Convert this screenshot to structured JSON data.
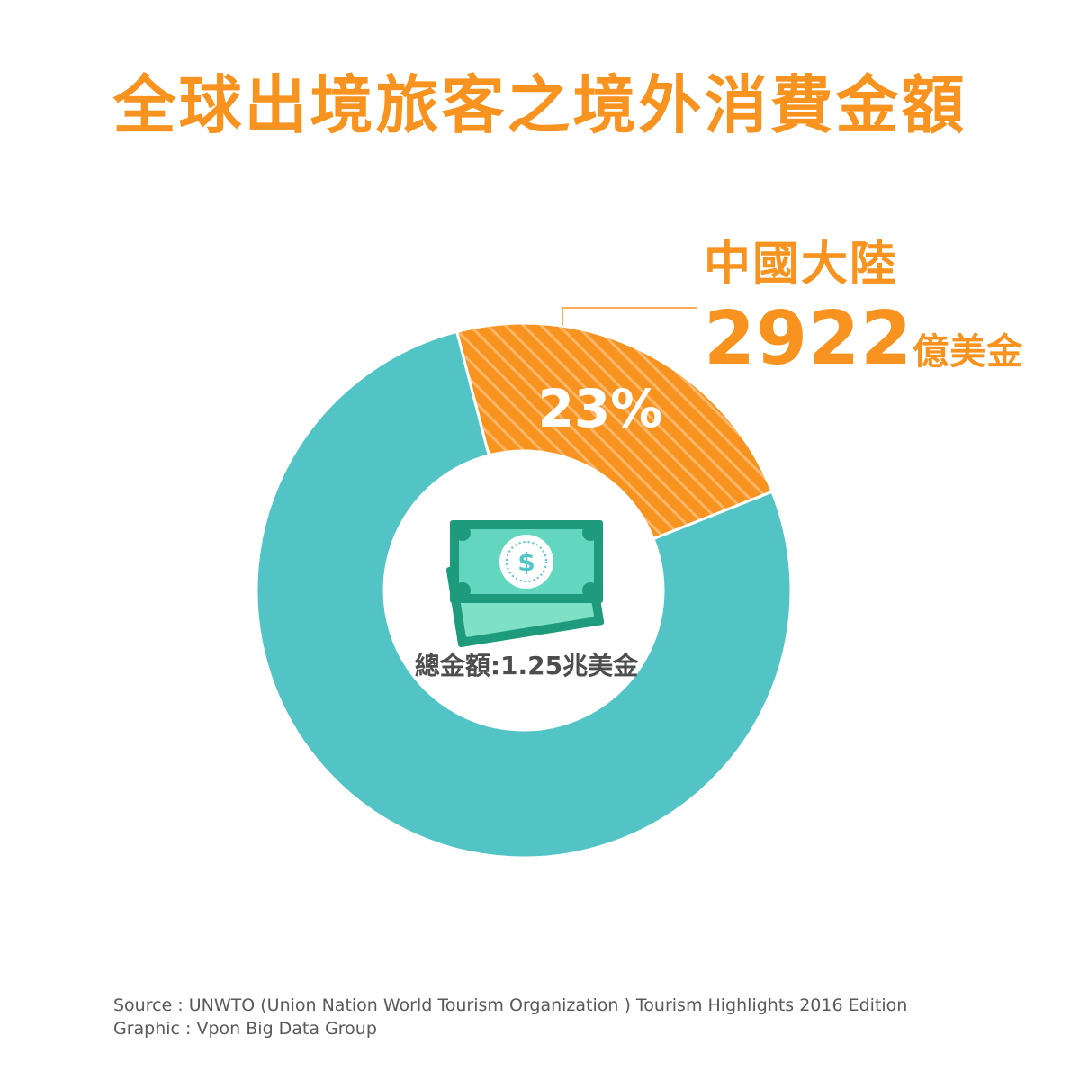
{
  "title": "全球出境旅客之境外消費金額",
  "colors": {
    "accent": "#f7931e",
    "accent_stripe": "#fbb76a",
    "teal": "#52c4c6",
    "money_dark": "#1e9a7c",
    "money_light": "#7ee0c5",
    "text_gray": "#4d4d4d"
  },
  "icons": {
    "center": "money-bills-icon"
  },
  "chart_data": {
    "type": "pie",
    "donut": true,
    "slices": [
      {
        "label": "中國大陸",
        "value": 23,
        "display": "23%",
        "amount": "2922",
        "unit": "億美金",
        "color": "#f7931e",
        "pattern": "diagonal-stripes"
      },
      {
        "label": "",
        "value": 77,
        "display": "",
        "color": "#52c4c6"
      }
    ],
    "center_label": "總金額:1.25兆美金"
  },
  "footer": {
    "source": "Source  : UNWTO (Union Nation World Tourism Organization ) Tourism Highlights 2016 Edition",
    "graphic": "Graphic : Vpon Big Data Group"
  }
}
